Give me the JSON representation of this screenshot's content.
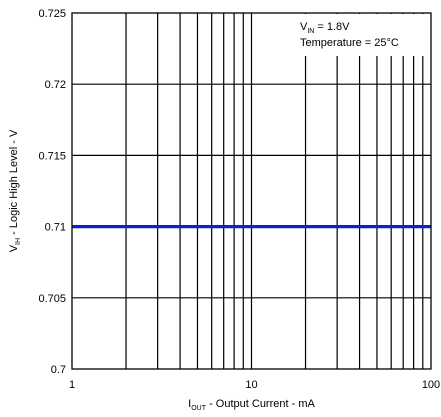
{
  "chart_data": {
    "type": "line",
    "x_scale": "log",
    "xlim": [
      1,
      100
    ],
    "ylim": [
      0.7,
      0.725
    ],
    "x_ticks": [
      {
        "value": 1,
        "label": "1"
      },
      {
        "value": 10,
        "label": "10"
      },
      {
        "value": 100,
        "label": "100"
      }
    ],
    "y_ticks": [
      {
        "value": 0.7,
        "label": "0.7"
      },
      {
        "value": 0.705,
        "label": "0.705"
      },
      {
        "value": 0.71,
        "label": "0.71"
      },
      {
        "value": 0.715,
        "label": "0.715"
      },
      {
        "value": 0.72,
        "label": "0.72"
      },
      {
        "value": 0.725,
        "label": "0.725"
      }
    ],
    "xlabel": {
      "main": "I",
      "sub": "OUT",
      "rest": " - Output Current - mA"
    },
    "ylabel": {
      "main": "V",
      "sub": "IH",
      "rest": " - Logic High Level - V"
    },
    "annotations": [
      {
        "main": "V",
        "sub": "IN",
        "rest": " = 1.8V"
      },
      {
        "main": "Temperature = 25°C",
        "sub": "",
        "rest": ""
      }
    ],
    "grid": true,
    "series": [
      {
        "color": "#0a1fd6",
        "x": [
          1,
          100
        ],
        "y": [
          0.71,
          0.71
        ]
      }
    ]
  }
}
